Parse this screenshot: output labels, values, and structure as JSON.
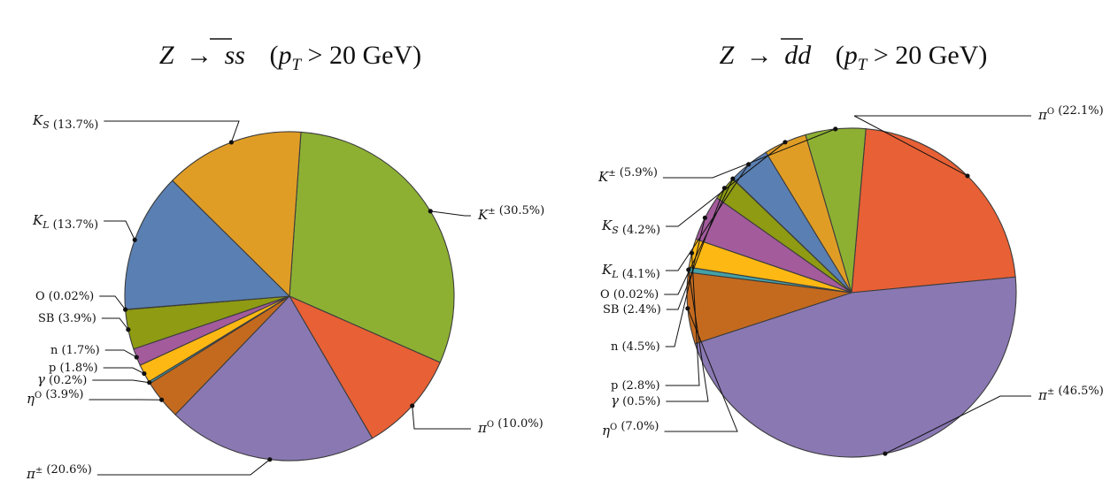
{
  "chart_data": [
    {
      "type": "pie",
      "title": "Z → ss̄  (p_T > 20 GeV)",
      "title_parts": {
        "lhs": "Z",
        "arrow": "→",
        "rhs": "ss",
        "cond_open": "(",
        "p": "p",
        "sub": "T",
        "cond_rest": " > 20 GeV)"
      },
      "slices": [
        {
          "name": "K±",
          "value": 30.5,
          "label": "K± (30.5%)",
          "color": "#8db033"
        },
        {
          "name": "π0",
          "value": 10.0,
          "label": "π0 (10.0%)",
          "color": "#e86035"
        },
        {
          "name": "π±",
          "value": 20.6,
          "label": "π± (20.6%)",
          "color": "#8a78b3"
        },
        {
          "name": "η0",
          "value": 3.9,
          "label": "η0 (3.9%)",
          "color": "#c46a1e"
        },
        {
          "name": "γ",
          "value": 0.2,
          "label": "γ (0.2%)",
          "color": "#44a1a8"
        },
        {
          "name": "p",
          "value": 1.8,
          "label": "p (1.8%)",
          "color": "#fdb813"
        },
        {
          "name": "n",
          "value": 1.7,
          "label": "n (1.7%)",
          "color": "#a35b9c"
        },
        {
          "name": "SB",
          "value": 3.9,
          "label": "SB (3.9%)",
          "color": "#8e9b13"
        },
        {
          "name": "O",
          "value": 0.02,
          "label": "O (0.02%)",
          "color": "#3f6e9a"
        },
        {
          "name": "K_L",
          "value": 13.7,
          "label": "K_L (13.7%)",
          "color": "#5a80b3"
        },
        {
          "name": "K_S",
          "value": 13.7,
          "label": "K_S (13.7%)",
          "color": "#e09d25"
        }
      ]
    },
    {
      "type": "pie",
      "title": "Z → dd̄  (p_T > 20 GeV)",
      "title_parts": {
        "lhs": "Z",
        "arrow": "→",
        "rhs": "dd",
        "cond_open": "(",
        "p": "p",
        "sub": "T",
        "cond_rest": " > 20 GeV)"
      },
      "slices": [
        {
          "name": "π0",
          "value": 22.1,
          "label": "π0 (22.1%)",
          "color": "#e86035"
        },
        {
          "name": "π±",
          "value": 46.5,
          "label": "π± (46.5%)",
          "color": "#8a78b3"
        },
        {
          "name": "η0",
          "value": 7.0,
          "label": "η0 (7.0%)",
          "color": "#c46a1e"
        },
        {
          "name": "γ",
          "value": 0.5,
          "label": "γ (0.5%)",
          "color": "#44a1a8"
        },
        {
          "name": "p",
          "value": 2.8,
          "label": "p (2.8%)",
          "color": "#fdb813"
        },
        {
          "name": "n",
          "value": 4.5,
          "label": "n (4.5%)",
          "color": "#a35b9c"
        },
        {
          "name": "SB",
          "value": 2.4,
          "label": "SB (2.4%)",
          "color": "#8e9b13"
        },
        {
          "name": "O",
          "value": 0.02,
          "label": "O (0.02%)",
          "color": "#3f6e9a"
        },
        {
          "name": "K_L",
          "value": 4.1,
          "label": "K_L (4.1%)",
          "color": "#5a80b3"
        },
        {
          "name": "K_S",
          "value": 4.2,
          "label": "K_S (4.2%)",
          "color": "#e09d25"
        },
        {
          "name": "K±",
          "value": 5.9,
          "label": "K± (5.9%)",
          "color": "#8db033"
        }
      ]
    }
  ]
}
